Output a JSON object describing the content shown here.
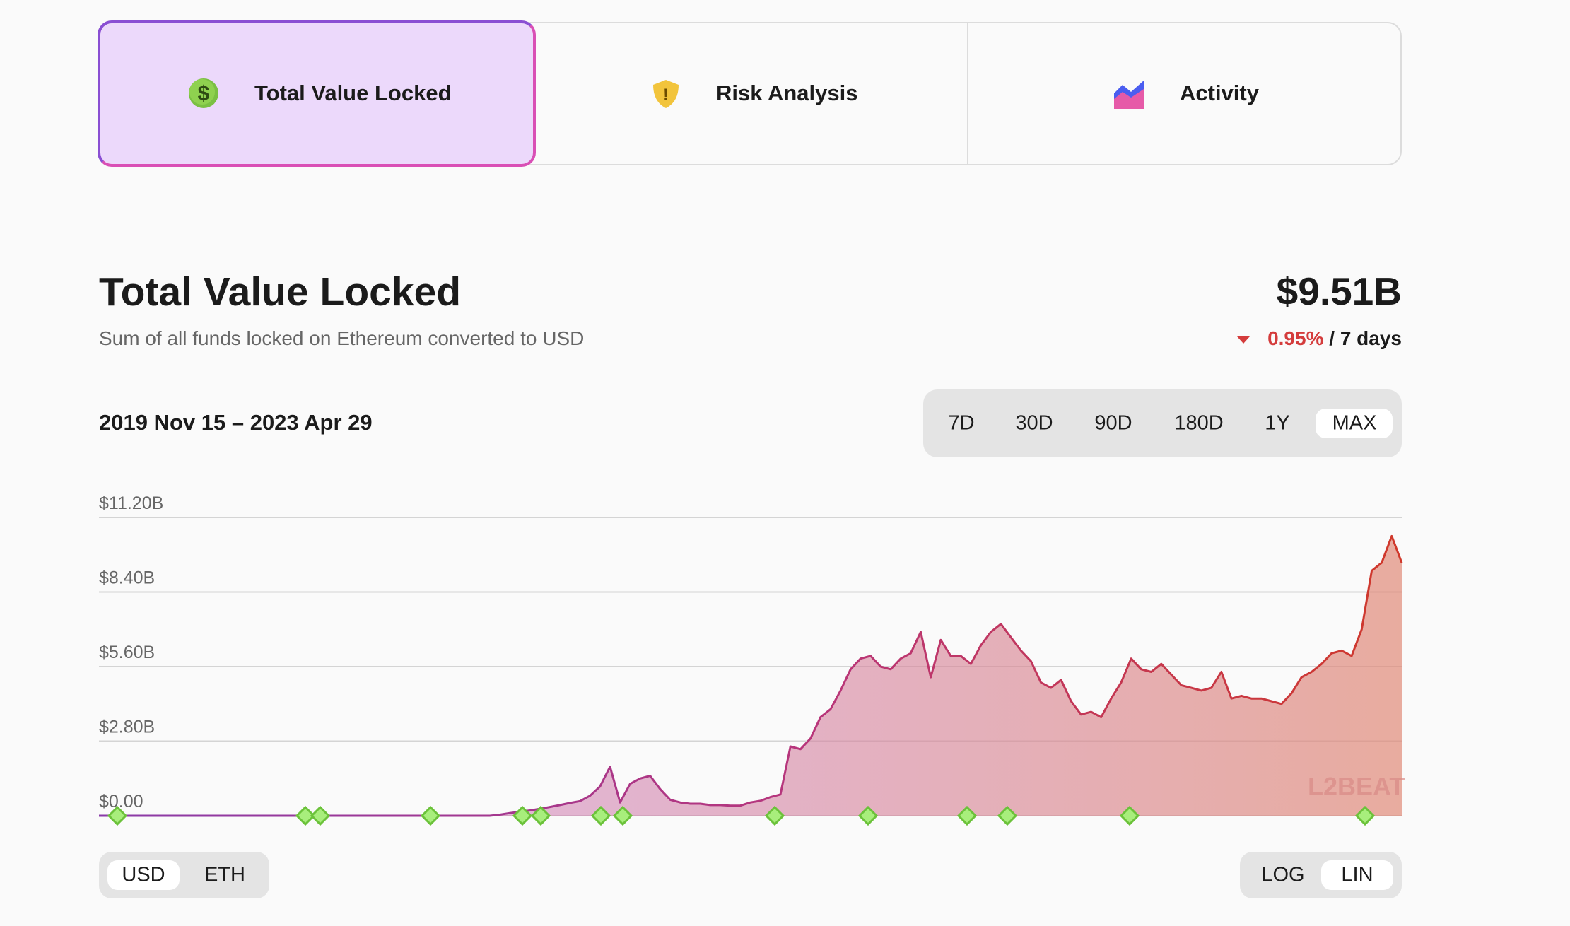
{
  "tabs": [
    "Total Value Locked",
    "Risk Analysis",
    "Activity"
  ],
  "header": {
    "title": "Total Value Locked",
    "subtitle": "Sum of all funds locked on Ethereum converted to USD",
    "total": "$9.51B",
    "change": "0.95%",
    "period": "/ 7 days",
    "date_range": "2019 Nov 15 – 2023 Apr 29"
  },
  "ranges": [
    "7D",
    "30D",
    "90D",
    "180D",
    "1Y",
    "MAX"
  ],
  "currencies": [
    "USD",
    "ETH"
  ],
  "scales": [
    "LOG",
    "LIN"
  ],
  "chart_data": {
    "type": "area",
    "watermark": "L2BEAT",
    "ylim": [
      0,
      11.2
    ],
    "yticks": [
      {
        "value": 0,
        "label": "$0.00"
      },
      {
        "value": 2.8,
        "label": "$2.80B"
      },
      {
        "value": 5.6,
        "label": "$5.60B"
      },
      {
        "value": 8.4,
        "label": "$8.40B"
      },
      {
        "value": 11.2,
        "label": "$11.20B"
      }
    ],
    "grid": true,
    "values": [
      0,
      0,
      0,
      0,
      0,
      0,
      0,
      0,
      0,
      0,
      0,
      0,
      0,
      0,
      0,
      0,
      0,
      0,
      0,
      0,
      0,
      0,
      0,
      0,
      0,
      0,
      0,
      0,
      0,
      0,
      0,
      0,
      0,
      0,
      0,
      0,
      0,
      0,
      0,
      0,
      0.04,
      0.1,
      0.15,
      0.2,
      0.26,
      0.33,
      0.4,
      0.48,
      0.55,
      0.75,
      1.1,
      1.84,
      0.5,
      1.2,
      1.4,
      1.5,
      1.0,
      0.6,
      0.5,
      0.45,
      0.45,
      0.4,
      0.4,
      0.38,
      0.38,
      0.5,
      0.56,
      0.7,
      0.8,
      2.6,
      2.5,
      2.9,
      3.7,
      4.0,
      4.7,
      5.5,
      5.9,
      6.0,
      5.6,
      5.5,
      5.9,
      6.1,
      6.9,
      5.2,
      6.6,
      6.0,
      6.0,
      5.7,
      6.4,
      6.9,
      7.2,
      6.7,
      6.2,
      5.8,
      5.0,
      4.8,
      5.1,
      4.3,
      3.8,
      3.9,
      3.7,
      4.4,
      5.0,
      5.9,
      5.5,
      5.4,
      5.7,
      5.3,
      4.9,
      4.8,
      4.7,
      4.8,
      5.4,
      4.4,
      4.5,
      4.4,
      4.4,
      4.3,
      4.2,
      4.6,
      5.2,
      5.4,
      5.7,
      6.1,
      6.2,
      6.0,
      7.0,
      9.2,
      9.5,
      10.5,
      9.5
    ]
  }
}
